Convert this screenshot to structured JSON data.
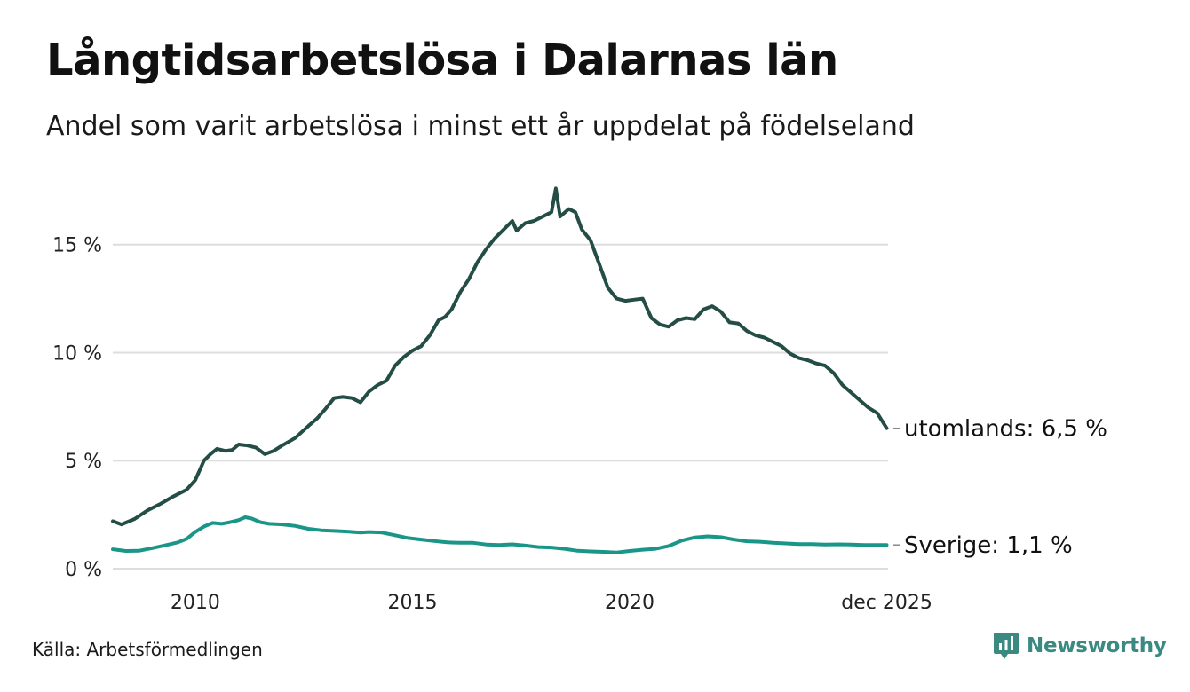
{
  "header": {
    "title": "Långtidsarbetslösa i Dalarnas län",
    "subtitle": "Andel som varit arbetslösa i minst ett år uppdelat på födelseland"
  },
  "footer": {
    "source": "Källa: Arbetsförmedlingen",
    "brand": "Newsworthy"
  },
  "colors": {
    "utomlands": "#234d45",
    "sverige": "#1a9688",
    "grid": "#dddddd",
    "brand": "#3a8a82"
  },
  "chart_data": {
    "type": "line",
    "title": "Långtidsarbetslösa i Dalarnas län",
    "subtitle": "Andel som varit arbetslösa i minst ett år uppdelat på födelseland",
    "xlabel": "",
    "ylabel": "",
    "xlim": [
      2008.1,
      2025.95
    ],
    "ylim": [
      0,
      17.7
    ],
    "x_ticks": [
      {
        "value": 2010,
        "label": "2010"
      },
      {
        "value": 2015,
        "label": "2015"
      },
      {
        "value": 2020,
        "label": "2020"
      },
      {
        "value": 2025.92,
        "label": "dec 2025"
      }
    ],
    "y_ticks": [
      {
        "value": 0,
        "label": "0 %"
      },
      {
        "value": 5,
        "label": "5 %"
      },
      {
        "value": 10,
        "label": "10 %"
      },
      {
        "value": 15,
        "label": "15 %"
      }
    ],
    "grid": true,
    "series": [
      {
        "name": "utomlands",
        "end_label": "utomlands: 6,5 %",
        "points": [
          [
            2008.1,
            2.2
          ],
          [
            2008.3,
            2.05
          ],
          [
            2008.6,
            2.3
          ],
          [
            2008.9,
            2.7
          ],
          [
            2009.2,
            3.0
          ],
          [
            2009.5,
            3.35
          ],
          [
            2009.8,
            3.65
          ],
          [
            2010.0,
            4.1
          ],
          [
            2010.2,
            5.0
          ],
          [
            2010.35,
            5.3
          ],
          [
            2010.5,
            5.55
          ],
          [
            2010.7,
            5.45
          ],
          [
            2010.85,
            5.5
          ],
          [
            2011.0,
            5.75
          ],
          [
            2011.2,
            5.7
          ],
          [
            2011.4,
            5.6
          ],
          [
            2011.6,
            5.3
          ],
          [
            2011.8,
            5.45
          ],
          [
            2012.0,
            5.7
          ],
          [
            2012.3,
            6.05
          ],
          [
            2012.6,
            6.6
          ],
          [
            2012.8,
            6.95
          ],
          [
            2013.0,
            7.4
          ],
          [
            2013.2,
            7.9
          ],
          [
            2013.4,
            7.95
          ],
          [
            2013.6,
            7.9
          ],
          [
            2013.8,
            7.7
          ],
          [
            2014.0,
            8.2
          ],
          [
            2014.2,
            8.5
          ],
          [
            2014.4,
            8.7
          ],
          [
            2014.6,
            9.4
          ],
          [
            2014.8,
            9.8
          ],
          [
            2015.0,
            10.1
          ],
          [
            2015.2,
            10.3
          ],
          [
            2015.4,
            10.8
          ],
          [
            2015.6,
            11.5
          ],
          [
            2015.75,
            11.65
          ],
          [
            2015.9,
            12.0
          ],
          [
            2016.1,
            12.8
          ],
          [
            2016.3,
            13.4
          ],
          [
            2016.5,
            14.2
          ],
          [
            2016.7,
            14.8
          ],
          [
            2016.9,
            15.3
          ],
          [
            2017.1,
            15.7
          ],
          [
            2017.3,
            16.1
          ],
          [
            2017.4,
            15.65
          ],
          [
            2017.6,
            16.0
          ],
          [
            2017.8,
            16.1
          ],
          [
            2018.0,
            16.3
          ],
          [
            2018.2,
            16.5
          ],
          [
            2018.3,
            17.6
          ],
          [
            2018.4,
            16.3
          ],
          [
            2018.6,
            16.65
          ],
          [
            2018.75,
            16.5
          ],
          [
            2018.9,
            15.7
          ],
          [
            2019.1,
            15.2
          ],
          [
            2019.3,
            14.1
          ],
          [
            2019.5,
            13.0
          ],
          [
            2019.7,
            12.5
          ],
          [
            2019.9,
            12.4
          ],
          [
            2020.1,
            12.45
          ],
          [
            2020.3,
            12.5
          ],
          [
            2020.5,
            11.6
          ],
          [
            2020.7,
            11.3
          ],
          [
            2020.9,
            11.2
          ],
          [
            2021.1,
            11.5
          ],
          [
            2021.3,
            11.6
          ],
          [
            2021.5,
            11.55
          ],
          [
            2021.7,
            12.0
          ],
          [
            2021.9,
            12.15
          ],
          [
            2022.1,
            11.9
          ],
          [
            2022.3,
            11.4
          ],
          [
            2022.5,
            11.35
          ],
          [
            2022.7,
            11.0
          ],
          [
            2022.9,
            10.8
          ],
          [
            2023.1,
            10.7
          ],
          [
            2023.3,
            10.5
          ],
          [
            2023.5,
            10.3
          ],
          [
            2023.7,
            9.95
          ],
          [
            2023.9,
            9.75
          ],
          [
            2024.1,
            9.65
          ],
          [
            2024.3,
            9.5
          ],
          [
            2024.5,
            9.4
          ],
          [
            2024.7,
            9.05
          ],
          [
            2024.9,
            8.5
          ],
          [
            2025.1,
            8.15
          ],
          [
            2025.3,
            7.8
          ],
          [
            2025.5,
            7.45
          ],
          [
            2025.7,
            7.2
          ],
          [
            2025.92,
            6.5
          ]
        ]
      },
      {
        "name": "Sverige",
        "end_label": "Sverige: 1,1 %",
        "points": [
          [
            2008.1,
            0.9
          ],
          [
            2008.4,
            0.82
          ],
          [
            2008.7,
            0.83
          ],
          [
            2009.0,
            0.95
          ],
          [
            2009.3,
            1.08
          ],
          [
            2009.6,
            1.22
          ],
          [
            2009.8,
            1.38
          ],
          [
            2010.0,
            1.7
          ],
          [
            2010.2,
            1.95
          ],
          [
            2010.4,
            2.12
          ],
          [
            2010.6,
            2.08
          ],
          [
            2010.8,
            2.15
          ],
          [
            2011.0,
            2.25
          ],
          [
            2011.15,
            2.38
          ],
          [
            2011.3,
            2.32
          ],
          [
            2011.5,
            2.15
          ],
          [
            2011.7,
            2.08
          ],
          [
            2012.0,
            2.05
          ],
          [
            2012.3,
            1.98
          ],
          [
            2012.6,
            1.85
          ],
          [
            2012.9,
            1.78
          ],
          [
            2013.2,
            1.75
          ],
          [
            2013.5,
            1.72
          ],
          [
            2013.8,
            1.67
          ],
          [
            2014.0,
            1.7
          ],
          [
            2014.3,
            1.67
          ],
          [
            2014.6,
            1.55
          ],
          [
            2014.9,
            1.42
          ],
          [
            2015.2,
            1.35
          ],
          [
            2015.5,
            1.28
          ],
          [
            2015.8,
            1.22
          ],
          [
            2016.1,
            1.2
          ],
          [
            2016.4,
            1.2
          ],
          [
            2016.7,
            1.12
          ],
          [
            2017.0,
            1.1
          ],
          [
            2017.3,
            1.13
          ],
          [
            2017.6,
            1.07
          ],
          [
            2017.9,
            1.0
          ],
          [
            2018.2,
            0.98
          ],
          [
            2018.5,
            0.92
          ],
          [
            2018.8,
            0.83
          ],
          [
            2019.1,
            0.8
          ],
          [
            2019.4,
            0.78
          ],
          [
            2019.7,
            0.75
          ],
          [
            2020.0,
            0.82
          ],
          [
            2020.3,
            0.88
          ],
          [
            2020.6,
            0.92
          ],
          [
            2020.9,
            1.05
          ],
          [
            2021.2,
            1.3
          ],
          [
            2021.5,
            1.45
          ],
          [
            2021.8,
            1.5
          ],
          [
            2022.1,
            1.46
          ],
          [
            2022.4,
            1.35
          ],
          [
            2022.7,
            1.27
          ],
          [
            2023.0,
            1.25
          ],
          [
            2023.3,
            1.2
          ],
          [
            2023.6,
            1.17
          ],
          [
            2023.9,
            1.14
          ],
          [
            2024.2,
            1.14
          ],
          [
            2024.5,
            1.12
          ],
          [
            2024.8,
            1.13
          ],
          [
            2025.1,
            1.12
          ],
          [
            2025.4,
            1.1
          ],
          [
            2025.7,
            1.1
          ],
          [
            2025.92,
            1.1
          ]
        ]
      }
    ]
  }
}
